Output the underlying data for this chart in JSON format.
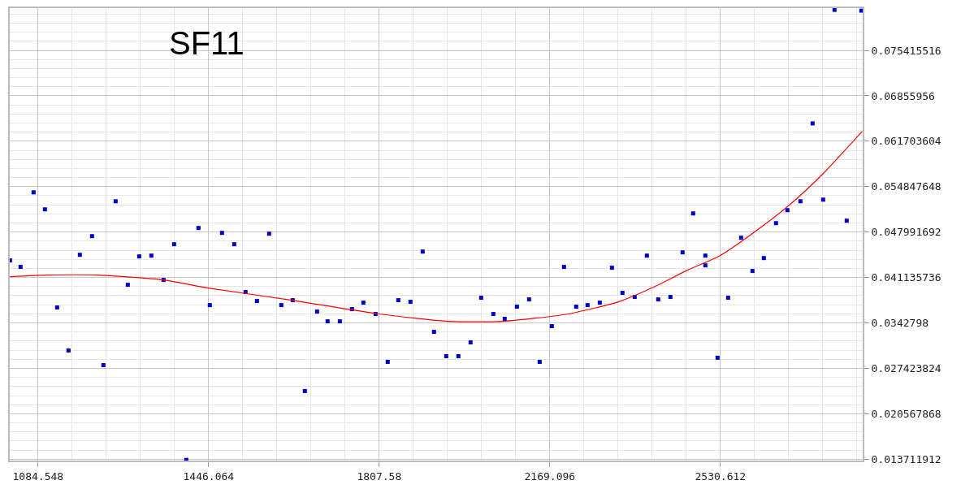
{
  "chart_data": {
    "type": "scatter",
    "title": "SF11",
    "xlim": [
      1024.6,
      2832.2
    ],
    "xticks": [
      1084.548,
      1446.064,
      1807.58,
      2169.096,
      2530.612
    ],
    "ylim": [
      0.0135,
      0.0818
    ],
    "yticks": [
      0.013711912,
      0.020567868,
      0.027423824,
      0.0342798,
      0.041135736,
      0.047991692,
      0.054847648,
      0.061703604,
      0.06855956,
      0.075415516
    ],
    "grid": true,
    "marker": "square",
    "series": [
      {
        "color": "#0000cc",
        "x": [
          1025.2,
          1047.5,
          1075.1,
          1099.2,
          1125.0,
          1149.1,
          1173.2,
          1199.0,
          1223.1,
          1249.0,
          1274.8,
          1298.9,
          1324.7,
          1350.5,
          1372.9,
          1398.7,
          1424.5,
          1448.6,
          1474.4,
          1500.3,
          1524.3,
          1548.5,
          1574.3,
          1600.1,
          1624.2,
          1650.0,
          1675.9,
          1698.2,
          1724.1,
          1749.9,
          1774.0,
          1799.8,
          1825.6,
          1848.0,
          1873.8,
          1899.7,
          1923.7,
          1949.6,
          1975.4,
          2001.2,
          2023.6,
          2049.4,
          2073.5,
          2099.4,
          2125.2,
          2147.6,
          2173.4,
          2199.2,
          2225.0,
          2249.1,
          2275.0,
          2300.8,
          2323.1,
          2349.0,
          2374.8,
          2398.9,
          2424.7,
          2450.5,
          2472.9,
          2498.7,
          2498.7,
          2524.6,
          2547.0,
          2574.5,
          2598.6,
          2622.7,
          2648.5,
          2672.6,
          2700.2,
          2726.0,
          2748.4,
          2772.5,
          2798.3,
          2829.3
        ],
        "values": [
          0.04371,
          0.04273,
          0.05399,
          0.05142,
          0.03661,
          0.03012,
          0.04456,
          0.04738,
          0.02791,
          0.05264,
          0.04003,
          0.04432,
          0.04444,
          0.04077,
          0.04616,
          0.0136,
          0.04861,
          0.03697,
          0.04787,
          0.04616,
          0.03893,
          0.03759,
          0.04775,
          0.03697,
          0.03771,
          0.024,
          0.03599,
          0.03452,
          0.03452,
          0.03636,
          0.03734,
          0.03563,
          0.0284,
          0.03771,
          0.03746,
          0.04505,
          0.03293,
          0.02926,
          0.02926,
          0.03134,
          0.03808,
          0.03563,
          0.03489,
          0.03673,
          0.03783,
          0.0284,
          0.03379,
          0.04273,
          0.03673,
          0.03697,
          0.03734,
          0.04261,
          0.03881,
          0.0382,
          0.04444,
          0.03783,
          0.0382,
          0.04493,
          0.05081,
          0.04444,
          0.04297,
          0.02902,
          0.03808,
          0.04714,
          0.04212,
          0.04407,
          0.04934,
          0.0513,
          0.05264,
          0.0644,
          0.05289,
          0.08154,
          0.04971,
          0.08142
        ]
      },
      {
        "type": "line",
        "color": "#ff0000",
        "marker": "none",
        "x": [
          1025.2,
          1106.1,
          1209.4,
          1350.5,
          1445.2,
          1622.5,
          1806.7,
          1954.7,
          2070.1,
          2207.8,
          2314.5,
          2385.1,
          2460.9,
          2529.7,
          2600.3,
          2676.1,
          2746.6,
          2831.0
        ],
        "values": [
          0.04126,
          0.0415,
          0.0415,
          0.04077,
          0.03955,
          0.03771,
          0.03563,
          0.03452,
          0.03452,
          0.03563,
          0.03746,
          0.03955,
          0.04224,
          0.04444,
          0.04787,
          0.05203,
          0.05669,
          0.06317
        ]
      }
    ]
  }
}
